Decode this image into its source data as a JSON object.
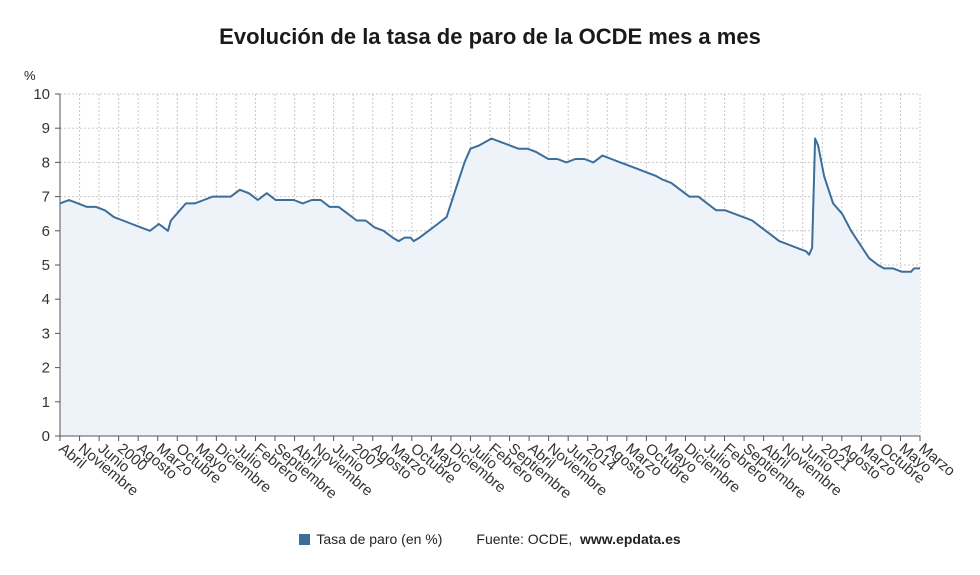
{
  "title": "Evolución de la tasa de paro de la OCDE mes a mes",
  "unit_label": "%",
  "legend": {
    "label": "Tasa de paro (en %)"
  },
  "source": {
    "label": "Fuente: OCDE,",
    "site": "www.epdata.es"
  },
  "colors": {
    "line": "#3d6e9a",
    "area": "#eef2f9",
    "grid": "#c8c8c8",
    "axis": "#555555",
    "legend_swatch": "#3d6e9a"
  },
  "chart_data": {
    "type": "area",
    "title": "Evolución de la tasa de paro de la OCDE mes a mes",
    "ylabel": "%",
    "ylim": [
      0,
      10
    ],
    "yticks": [
      0,
      1,
      2,
      3,
      4,
      5,
      6,
      7,
      8,
      9,
      10
    ],
    "x_start": "1999-04",
    "x_end": "2023-03",
    "x_tick_labels": [
      "Abril",
      "Noviembre",
      "Junio",
      "2000",
      "Agosto",
      "Marzo",
      "Octubre",
      "Mayo",
      "Diciembre",
      "Julio",
      "Febrero",
      "Septiembre",
      "Abril",
      "Noviembre",
      "Junio",
      "2007",
      "Agosto",
      "Marzo",
      "Octubre",
      "Mayo",
      "Diciembre",
      "Julio",
      "Febrero",
      "Septiembre",
      "Abril",
      "Noviembre",
      "Junio",
      "2014",
      "Agosto",
      "Marzo",
      "Octubre",
      "Mayo",
      "Diciembre",
      "Julio",
      "Febrero",
      "Septiembre",
      "Abril",
      "Noviembre",
      "Junio",
      "2021",
      "Agosto",
      "Marzo",
      "Octubre",
      "Mayo",
      "Marzo"
    ],
    "grid": true,
    "legend_position": "bottom",
    "series": [
      {
        "name": "Tasa de paro (en %)",
        "points": [
          [
            "1999-04",
            6.8
          ],
          [
            "1999-07",
            6.9
          ],
          [
            "1999-10",
            6.8
          ],
          [
            "2000-01",
            6.7
          ],
          [
            "2000-04",
            6.7
          ],
          [
            "2000-07",
            6.6
          ],
          [
            "2000-10",
            6.4
          ],
          [
            "2001-01",
            6.3
          ],
          [
            "2001-04",
            6.2
          ],
          [
            "2001-07",
            6.1
          ],
          [
            "2001-10",
            6.0
          ],
          [
            "2002-01",
            6.2
          ],
          [
            "2002-04",
            6.0
          ],
          [
            "2002-05",
            6.3
          ],
          [
            "2002-07",
            6.5
          ],
          [
            "2002-10",
            6.8
          ],
          [
            "2003-01",
            6.8
          ],
          [
            "2003-04",
            6.9
          ],
          [
            "2003-07",
            7.0
          ],
          [
            "2003-10",
            7.0
          ],
          [
            "2004-01",
            7.0
          ],
          [
            "2004-04",
            7.2
          ],
          [
            "2004-07",
            7.1
          ],
          [
            "2004-10",
            6.9
          ],
          [
            "2005-01",
            7.1
          ],
          [
            "2005-04",
            6.9
          ],
          [
            "2005-07",
            6.9
          ],
          [
            "2005-10",
            6.9
          ],
          [
            "2006-01",
            6.8
          ],
          [
            "2006-04",
            6.9
          ],
          [
            "2006-07",
            6.9
          ],
          [
            "2006-10",
            6.7
          ],
          [
            "2007-01",
            6.7
          ],
          [
            "2007-04",
            6.5
          ],
          [
            "2007-07",
            6.3
          ],
          [
            "2007-10",
            6.3
          ],
          [
            "2008-01",
            6.1
          ],
          [
            "2008-04",
            6.0
          ],
          [
            "2008-07",
            5.8
          ],
          [
            "2008-09",
            5.7
          ],
          [
            "2008-11",
            5.8
          ],
          [
            "2009-01",
            5.8
          ],
          [
            "2009-02",
            5.7
          ],
          [
            "2009-04",
            5.8
          ],
          [
            "2009-07",
            6.0
          ],
          [
            "2009-10",
            6.2
          ],
          [
            "2010-01",
            6.4
          ],
          [
            "2010-04",
            7.2
          ],
          [
            "2010-07",
            8.0
          ],
          [
            "2010-09",
            8.4
          ],
          [
            "2010-12",
            8.5
          ],
          [
            "2011-02",
            8.6
          ],
          [
            "2011-04",
            8.7
          ],
          [
            "2011-07",
            8.6
          ],
          [
            "2011-10",
            8.5
          ],
          [
            "2012-01",
            8.4
          ],
          [
            "2012-04",
            8.4
          ],
          [
            "2012-07",
            8.3
          ],
          [
            "2012-09",
            8.2
          ],
          [
            "2012-11",
            8.1
          ],
          [
            "2013-02",
            8.1
          ],
          [
            "2013-05",
            8.0
          ],
          [
            "2013-08",
            8.1
          ],
          [
            "2013-11",
            8.1
          ],
          [
            "2014-02",
            8.0
          ],
          [
            "2014-05",
            8.2
          ],
          [
            "2014-08",
            8.1
          ],
          [
            "2014-11",
            8.0
          ],
          [
            "2015-02",
            7.9
          ],
          [
            "2015-05",
            7.8
          ],
          [
            "2015-08",
            7.7
          ],
          [
            "2015-11",
            7.6
          ],
          [
            "2016-01",
            7.5
          ],
          [
            "2016-04",
            7.4
          ],
          [
            "2016-07",
            7.2
          ],
          [
            "2016-10",
            7.0
          ],
          [
            "2017-01",
            7.0
          ],
          [
            "2017-04",
            6.8
          ],
          [
            "2017-07",
            6.6
          ],
          [
            "2017-10",
            6.6
          ],
          [
            "2018-01",
            6.5
          ],
          [
            "2018-04",
            6.4
          ],
          [
            "2018-07",
            6.3
          ],
          [
            "2018-10",
            6.1
          ],
          [
            "2019-01",
            5.9
          ],
          [
            "2019-04",
            5.7
          ],
          [
            "2019-07",
            5.6
          ],
          [
            "2019-10",
            5.5
          ],
          [
            "2020-01",
            5.4
          ],
          [
            "2020-02",
            5.3
          ],
          [
            "2020-03",
            5.5
          ],
          [
            "2020-04",
            8.7
          ],
          [
            "2020-05",
            8.5
          ],
          [
            "2020-07",
            7.6
          ],
          [
            "2020-10",
            6.8
          ],
          [
            "2020-12",
            6.6
          ],
          [
            "2021-01",
            6.5
          ],
          [
            "2021-04",
            6.0
          ],
          [
            "2021-07",
            5.6
          ],
          [
            "2021-10",
            5.2
          ],
          [
            "2022-01",
            5.0
          ],
          [
            "2022-03",
            4.9
          ],
          [
            "2022-06",
            4.9
          ],
          [
            "2022-09",
            4.8
          ],
          [
            "2022-12",
            4.8
          ],
          [
            "2023-01",
            4.9
          ],
          [
            "2023-03",
            4.9
          ]
        ]
      }
    ]
  }
}
